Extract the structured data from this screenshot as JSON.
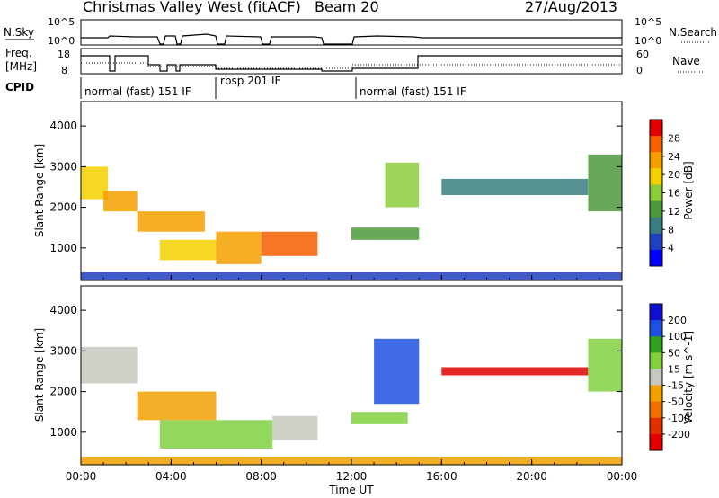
{
  "header": {
    "station": "Christmas Valley West (fitACF)",
    "beam": "Beam 20",
    "date": "27/Aug/2013"
  },
  "strip_panels": {
    "nsky": {
      "left_label": "N.Sky",
      "left_ticks": [
        "10^5",
        "10^0"
      ],
      "right_label": "N.Search",
      "right_ticks": [
        "10^5",
        "10^0"
      ]
    },
    "freq": {
      "left_label_1": "Freq.",
      "left_label_2": "[MHz]",
      "left_ticks": [
        "18",
        "8"
      ],
      "right_label": "Nave",
      "right_ticks": [
        "60",
        "0"
      ]
    },
    "cpid": {
      "label": "CPID",
      "segments": [
        "normal (fast) 151 IF",
        "rbsp 201 IF",
        "normal (fast) 151 IF"
      ]
    }
  },
  "x_axis": {
    "label": "Time UT",
    "ticks": [
      "00:00",
      "04:00",
      "08:00",
      "12:00",
      "16:00",
      "20:00",
      "00:00"
    ]
  },
  "colors": {
    "power_scale": [
      "#0000ff",
      "#2040c0",
      "#3a7f7f",
      "#4c9a3c",
      "#8ccc3c",
      "#f5d000",
      "#f5a000",
      "#f56000",
      "#e00000"
    ],
    "velocity_scale": [
      "#1010d0",
      "#2050e0",
      "#30a020",
      "#80d040",
      "#c8c8c0",
      "#f0a000",
      "#f07000",
      "#e03000",
      "#e00000"
    ]
  },
  "chart_data": [
    {
      "type": "heatmap",
      "title": "Power",
      "xlabel": "Time UT",
      "ylabel": "Slant Range [km]",
      "xlim": [
        "00:00",
        "24:00"
      ],
      "ylim": [
        200,
        4600
      ],
      "yticks": [
        1000,
        2000,
        3000,
        4000
      ],
      "colorbar": {
        "label": "Power [dB]",
        "ticks": [
          4,
          8,
          12,
          16,
          20,
          24,
          28
        ],
        "range": [
          0,
          32
        ]
      },
      "regions": [
        {
          "t": [
            0.0,
            1.2
          ],
          "r": [
            2200,
            3000
          ],
          "value": 20
        },
        {
          "t": [
            1.0,
            2.5
          ],
          "r": [
            1900,
            2400
          ],
          "value": 22
        },
        {
          "t": [
            2.5,
            5.5
          ],
          "r": [
            1400,
            1900
          ],
          "value": 24
        },
        {
          "t": [
            3.5,
            6.0
          ],
          "r": [
            700,
            1200
          ],
          "value": 18
        },
        {
          "t": [
            6.0,
            8.0
          ],
          "r": [
            600,
            1400
          ],
          "value": 24
        },
        {
          "t": [
            8.0,
            10.5
          ],
          "r": [
            800,
            1400
          ],
          "value": 26
        },
        {
          "t": [
            12.0,
            15.0
          ],
          "r": [
            1200,
            1500
          ],
          "value": 14
        },
        {
          "t": [
            13.5,
            15.0
          ],
          "r": [
            2000,
            3100
          ],
          "value": 16
        },
        {
          "t": [
            16.0,
            22.5
          ],
          "r": [
            2300,
            2700
          ],
          "value": 8
        },
        {
          "t": [
            22.5,
            24.0
          ],
          "r": [
            1900,
            3300
          ],
          "value": 12
        },
        {
          "t": [
            0.0,
            24.0
          ],
          "r": [
            200,
            400
          ],
          "value": 6
        }
      ]
    },
    {
      "type": "heatmap",
      "title": "Velocity",
      "xlabel": "Time UT",
      "ylabel": "Slant Range [km]",
      "xlim": [
        "00:00",
        "24:00"
      ],
      "ylim": [
        200,
        4600
      ],
      "yticks": [
        1000,
        2000,
        3000,
        4000
      ],
      "colorbar": {
        "label": "Velocity [m s^-1]",
        "ticks": [
          200,
          100,
          50,
          15,
          -15,
          -50,
          -100,
          -200
        ],
        "range": [
          -250,
          250
        ]
      },
      "regions": [
        {
          "t": [
            0.0,
            2.5
          ],
          "r": [
            2200,
            3100
          ],
          "value": 0
        },
        {
          "t": [
            2.5,
            6.0
          ],
          "r": [
            1300,
            2000
          ],
          "value": -60
        },
        {
          "t": [
            3.5,
            8.5
          ],
          "r": [
            600,
            1300
          ],
          "value": 40
        },
        {
          "t": [
            8.5,
            10.5
          ],
          "r": [
            800,
            1400
          ],
          "value": 0
        },
        {
          "t": [
            12.0,
            14.5
          ],
          "r": [
            1200,
            1500
          ],
          "value": 30
        },
        {
          "t": [
            13.0,
            15.0
          ],
          "r": [
            1700,
            3300
          ],
          "value": 150
        },
        {
          "t": [
            16.0,
            22.5
          ],
          "r": [
            2400,
            2600
          ],
          "value": -200
        },
        {
          "t": [
            22.5,
            24.0
          ],
          "r": [
            2000,
            3300
          ],
          "value": 50
        },
        {
          "t": [
            0.0,
            24.0
          ],
          "r": [
            200,
            400
          ],
          "value": -40
        }
      ]
    }
  ]
}
